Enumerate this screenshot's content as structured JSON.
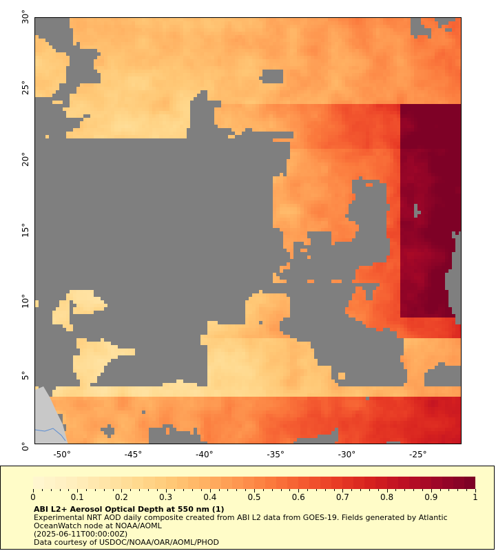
{
  "map": {
    "y_ticks": [
      "0°",
      "5°",
      "10°",
      "15°",
      "20°",
      "25°",
      "30°"
    ],
    "x_ticks": [
      "-50°",
      "-45°",
      "-40°",
      "-35°",
      "-30°",
      "-25°"
    ],
    "lat_range": [
      0,
      30
    ],
    "lon_range": [
      -52,
      -22
    ],
    "colors": {
      "no_data": "#7f7f7f",
      "land": "#c8c8c8",
      "river": "#5a8cd2"
    }
  },
  "legend": {
    "colorbar_ticks": [
      "0",
      "0.1",
      "0.2",
      "0.3",
      "0.4",
      "0.5",
      "0.6",
      "0.7",
      "0.8",
      "0.9",
      "1"
    ],
    "colorbar_range": [
      0,
      1
    ],
    "colorbar_colors": [
      "#fff6cf",
      "#ffefbe",
      "#ffe5a8",
      "#ffd98e",
      "#ffc876",
      "#ffb263",
      "#fe9750",
      "#fb7a3d",
      "#f45a30",
      "#e83b25",
      "#d6211f",
      "#bd0f23",
      "#9e0628",
      "#7e0126"
    ],
    "title": "ABI L2+ Aerosol Optical Depth at 550 nm (1)",
    "line1": "Experimental NRT AOD daily composite created from ABI L2 data from GOES-19. Fields generated by Atlantic",
    "line2": "OceanWatch node at NOAA/AOML",
    "line3": "(2025-06-11T00:00:00Z)",
    "line4": "Data courtesy of USDOC/NOAA/OAR/AOML/PHOD"
  }
}
